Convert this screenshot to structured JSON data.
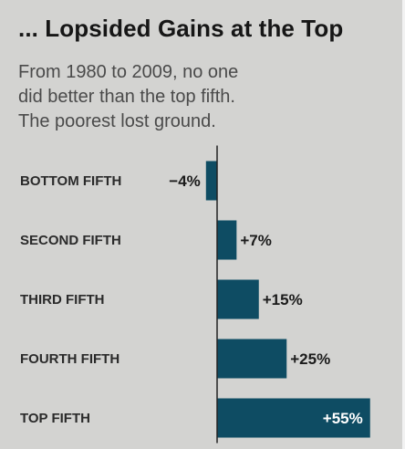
{
  "header": {
    "title": "... Lopsided Gains at the Top",
    "subtitle_lines": [
      "From 1980 to 2009, no one",
      "did better than the top fifth.",
      "The poorest lost ground."
    ]
  },
  "colors": {
    "bar": "#0e4c63",
    "background": "#d3d3d1",
    "axis": "#222222"
  },
  "chart_data": {
    "type": "bar",
    "orientation": "horizontal",
    "title": "... Lopsided Gains at the Top",
    "subtitle": "From 1980 to 2009, no one did better than the top fifth. The poorest lost ground.",
    "categories": [
      "BOTTOM FIFTH",
      "SECOND FIFTH",
      "THIRD FIFTH",
      "FOURTH FIFTH",
      "TOP FIFTH"
    ],
    "values": [
      -4,
      7,
      15,
      25,
      55
    ],
    "value_labels": [
      "−4%",
      "+7%",
      "+15%",
      "+25%",
      "+55%"
    ],
    "unit": "%",
    "xlim": [
      -4,
      55
    ],
    "grid": false,
    "legend": "none"
  }
}
